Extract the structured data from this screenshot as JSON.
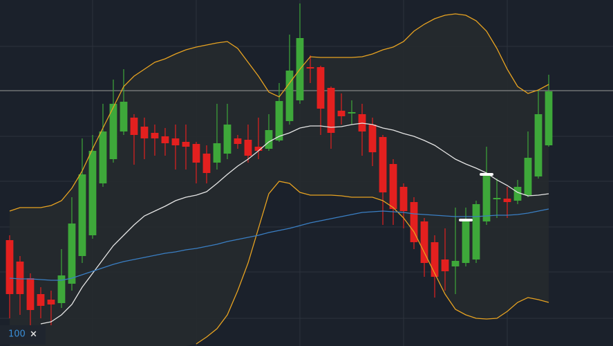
{
  "chart_data": {
    "type": "candlestick",
    "x": [
      0,
      1,
      2,
      3,
      4,
      5,
      6,
      7,
      8,
      9,
      10,
      11,
      12,
      13,
      14,
      15,
      16,
      17,
      18,
      19,
      20,
      21,
      22,
      23,
      24,
      25,
      26,
      27,
      28,
      29,
      30,
      31,
      32,
      33,
      34,
      35,
      36,
      37,
      38,
      39,
      40,
      41,
      42,
      43,
      44,
      45,
      46,
      47,
      48,
      49,
      50,
      51,
      52
    ],
    "open": [
      153,
      122,
      98,
      75,
      67,
      62,
      90,
      130,
      160,
      235,
      270,
      310,
      330,
      317,
      308,
      303,
      300,
      295,
      292,
      278,
      265,
      278,
      300,
      298,
      288,
      285,
      297,
      325,
      355,
      403,
      403,
      373,
      340,
      336,
      335,
      320,
      302,
      263,
      230,
      208,
      180,
      150,
      125,
      115,
      120,
      125,
      180,
      212,
      213,
      210,
      218,
      245,
      290
    ],
    "close": [
      75,
      75,
      52,
      58,
      60,
      102,
      177,
      248,
      282,
      310,
      350,
      353,
      305,
      300,
      300,
      293,
      290,
      288,
      265,
      250,
      293,
      320,
      292,
      275,
      282,
      312,
      354,
      398,
      445,
      401,
      343,
      308,
      332,
      338,
      310,
      280,
      222,
      198,
      195,
      150,
      120,
      100,
      108,
      123,
      182,
      205,
      248,
      214,
      208,
      230,
      272,
      335,
      368
    ],
    "high": [
      160,
      130,
      105,
      85,
      80,
      140,
      215,
      300,
      305,
      350,
      385,
      400,
      335,
      330,
      320,
      315,
      320,
      320,
      295,
      290,
      350,
      350,
      305,
      320,
      330,
      335,
      380,
      450,
      495,
      420,
      405,
      375,
      365,
      355,
      350,
      330,
      305,
      270,
      235,
      215,
      185,
      160,
      170,
      200,
      200,
      210,
      288,
      242,
      230,
      240,
      310,
      370,
      392
    ],
    "low": [
      40,
      45,
      30,
      40,
      30,
      55,
      80,
      120,
      155,
      230,
      265,
      305,
      262,
      270,
      275,
      275,
      255,
      255,
      235,
      235,
      255,
      270,
      285,
      265,
      270,
      282,
      295,
      320,
      350,
      380,
      305,
      285,
      320,
      320,
      275,
      260,
      175,
      175,
      170,
      140,
      100,
      70,
      80,
      75,
      115,
      120,
      175,
      185,
      185,
      205,
      215,
      242,
      288
    ],
    "up_color": "#3ea83a",
    "down_color": "#e3201f",
    "series": [
      {
        "color": "#e8a321",
        "values": [
          195,
          200,
          200,
          200,
          203,
          210,
          228,
          253,
          285,
          315,
          345,
          375,
          390,
          400,
          410,
          415,
          422,
          428,
          432,
          435,
          438,
          440,
          430,
          410,
          390,
          367,
          360,
          380,
          400,
          418,
          417,
          417,
          417,
          417,
          418,
          422,
          428,
          432,
          440,
          455,
          465,
          473,
          478,
          480,
          478,
          470,
          455,
          430,
          400,
          375,
          365,
          370,
          378
        ]
      },
      {
        "color": "#e8a321",
        "values": [
          null,
          null,
          null,
          null,
          null,
          null,
          null,
          null,
          null,
          null,
          null,
          null,
          null,
          null,
          null,
          null,
          null,
          null,
          3,
          13,
          25,
          45,
          80,
          120,
          170,
          220,
          238,
          235,
          222,
          218,
          218,
          218,
          217,
          215,
          215,
          215,
          210,
          200,
          185,
          165,
          135,
          105,
          75,
          53,
          45,
          40,
          39,
          40,
          50,
          63,
          70,
          67,
          63
        ]
      },
      {
        "color": "#e6e6e6",
        "values": [
          null,
          null,
          null,
          32,
          35,
          45,
          60,
          85,
          105,
          125,
          145,
          160,
          175,
          188,
          195,
          202,
          210,
          215,
          218,
          223,
          235,
          248,
          260,
          270,
          282,
          295,
          303,
          308,
          315,
          318,
          318,
          316,
          317,
          320,
          322,
          320,
          315,
          312,
          307,
          303,
          297,
          290,
          280,
          270,
          263,
          257,
          250,
          240,
          232,
          222,
          217,
          218,
          220
        ]
      },
      {
        "color": "#3a7fc4",
        "values": [
          98,
          97,
          97,
          96,
          95,
          95,
          98,
          103,
          108,
          113,
          118,
          122,
          125,
          128,
          131,
          134,
          136,
          139,
          141,
          144,
          147,
          151,
          154,
          157,
          160,
          164,
          167,
          170,
          174,
          178,
          181,
          184,
          187,
          190,
          193,
          194,
          195,
          194,
          193,
          191,
          190,
          189,
          188,
          187,
          187,
          187,
          188,
          189,
          189,
          190,
          192,
          195,
          198
        ]
      }
    ],
    "markers": {
      "x": [
        44,
        46
      ],
      "values": [
        182,
        248
      ],
      "color": "#ffffff"
    },
    "crosshair": 369,
    "xlim": [
      -0.93,
      58.2
    ],
    "ylim": [
      0,
      500
    ],
    "xticks": [
      8,
      18,
      28,
      38,
      48
    ],
    "yticks": [
      40,
      107,
      172,
      238,
      303,
      433
    ],
    "grid": true,
    "band_fill": "#262a2d"
  },
  "controls": {
    "zoom": "100",
    "close": "×"
  }
}
